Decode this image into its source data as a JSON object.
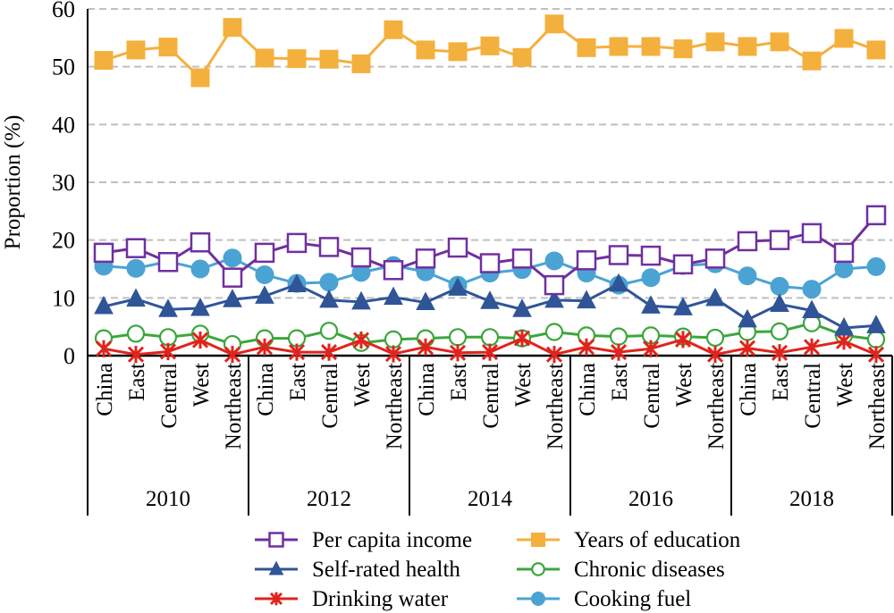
{
  "chart_data": {
    "type": "line",
    "ylabel": "Proportion (%)",
    "ylim": [
      0,
      60
    ],
    "yticks": [
      0,
      10,
      20,
      30,
      40,
      50,
      60
    ],
    "grid": "horizontal dashed",
    "legend_position": "bottom",
    "groups": [
      "2010",
      "2012",
      "2014",
      "2016",
      "2018"
    ],
    "regions": [
      "China",
      "East",
      "Central",
      "West",
      "Northeast"
    ],
    "series": [
      {
        "name": "Per capita income",
        "color": "#7030A0",
        "marker": "square-open",
        "values": [
          17.8,
          18.6,
          16.2,
          19.6,
          13.5,
          17.8,
          19.5,
          18.8,
          17.0,
          14.8,
          16.8,
          18.7,
          16.0,
          16.8,
          12.2,
          16.5,
          17.4,
          17.3,
          15.8,
          16.8,
          19.8,
          20.0,
          21.2,
          17.8,
          24.3
        ]
      },
      {
        "name": "Years of education",
        "color": "#F4B03D",
        "marker": "square-filled",
        "values": [
          51.1,
          52.9,
          53.4,
          48.1,
          56.8,
          51.5,
          51.4,
          51.3,
          50.5,
          56.4,
          52.9,
          52.6,
          53.6,
          51.6,
          57.4,
          53.3,
          53.5,
          53.5,
          53.1,
          54.3,
          53.5,
          54.3,
          51.0,
          54.9,
          52.9
        ]
      },
      {
        "name": "Self-rated health",
        "color": "#2F5597",
        "marker": "triangle-filled",
        "values": [
          8.5,
          9.8,
          8.0,
          8.2,
          9.7,
          10.3,
          12.3,
          9.6,
          9.3,
          10.1,
          9.2,
          11.7,
          9.4,
          8.0,
          9.6,
          9.5,
          12.4,
          8.6,
          8.3,
          9.9,
          6.2,
          8.9,
          7.8,
          4.8,
          5.2
        ]
      },
      {
        "name": "Chronic diseases",
        "color": "#3CA63C",
        "marker": "circle-open",
        "values": [
          3.0,
          3.8,
          3.2,
          3.8,
          2.0,
          3.0,
          3.0,
          4.3,
          2.2,
          2.8,
          3.0,
          3.2,
          3.2,
          3.0,
          4.1,
          3.5,
          3.3,
          3.5,
          3.3,
          3.1,
          4.1,
          4.2,
          5.6,
          3.5,
          2.8
        ]
      },
      {
        "name": "Drinking water",
        "color": "#E0241C",
        "marker": "asterisk",
        "values": [
          1.2,
          0.2,
          0.7,
          2.7,
          0.2,
          1.5,
          0.6,
          0.6,
          2.7,
          0.3,
          1.5,
          0.5,
          0.6,
          3.0,
          0.2,
          1.5,
          0.6,
          1.2,
          2.8,
          0.2,
          1.3,
          0.5,
          1.5,
          2.5,
          0.2
        ]
      },
      {
        "name": "Cooking fuel",
        "color": "#4BA3D4",
        "marker": "circle-filled",
        "values": [
          15.5,
          15.1,
          16.3,
          15.0,
          16.9,
          14.0,
          12.5,
          12.7,
          14.4,
          15.6,
          14.5,
          12.2,
          14.3,
          14.9,
          16.4,
          14.3,
          12.2,
          13.5,
          15.6,
          15.9,
          13.8,
          12.0,
          11.5,
          15.0,
          15.4
        ]
      }
    ]
  }
}
